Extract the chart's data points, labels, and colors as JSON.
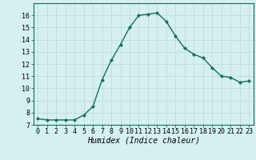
{
  "x": [
    0,
    1,
    2,
    3,
    4,
    5,
    6,
    7,
    8,
    9,
    10,
    11,
    12,
    13,
    14,
    15,
    16,
    17,
    18,
    19,
    20,
    21,
    22,
    23
  ],
  "y": [
    7.5,
    7.4,
    7.4,
    7.4,
    7.4,
    7.8,
    8.5,
    10.7,
    12.3,
    13.6,
    15.0,
    16.0,
    16.1,
    16.2,
    15.5,
    14.3,
    13.3,
    12.8,
    12.5,
    11.7,
    11.0,
    10.9,
    10.5,
    10.6
  ],
  "line_color": "#1a6b5a",
  "marker": "D",
  "marker_size": 2.0,
  "bg_color": "#d4f0f0",
  "grid_color": "#b8dada",
  "xlabel": "Humidex (Indice chaleur)",
  "xlim": [
    -0.5,
    23.5
  ],
  "ylim": [
    7,
    17
  ],
  "yticks": [
    7,
    8,
    9,
    10,
    11,
    12,
    13,
    14,
    15,
    16
  ],
  "xticks": [
    0,
    1,
    2,
    3,
    4,
    5,
    6,
    7,
    8,
    9,
    10,
    11,
    12,
    13,
    14,
    15,
    16,
    17,
    18,
    19,
    20,
    21,
    22,
    23
  ],
  "tick_fontsize": 6.0,
  "xlabel_fontsize": 7.0,
  "linewidth": 1.0
}
